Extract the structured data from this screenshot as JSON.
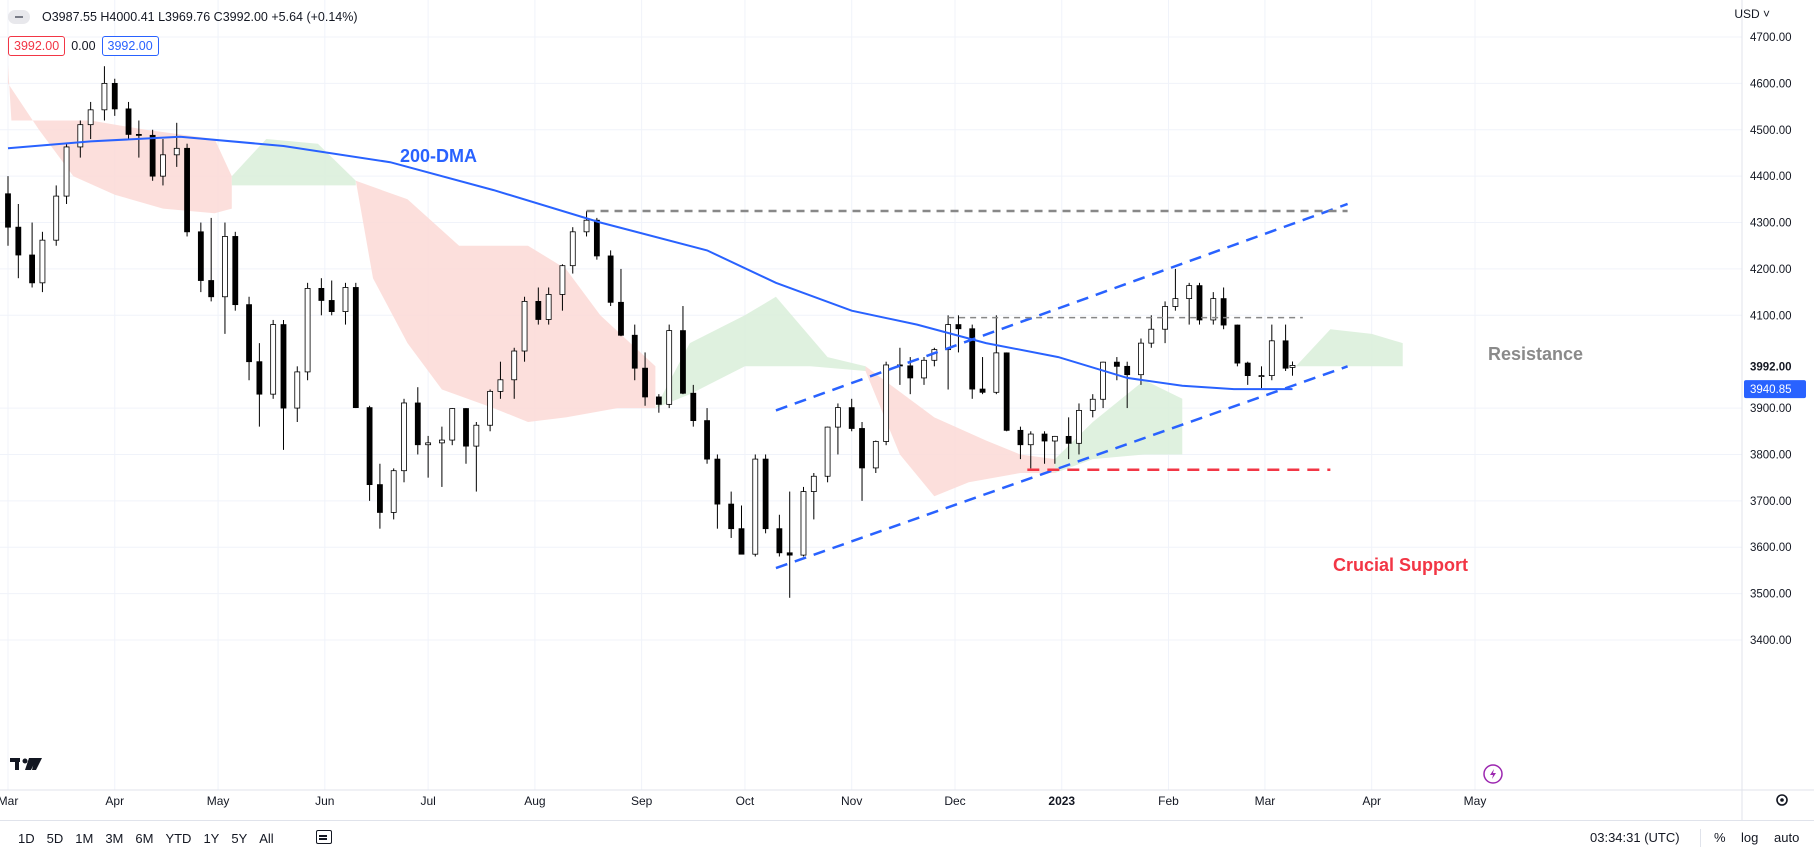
{
  "header": {
    "ohlc_text": "O3987.55 H4000.41 L3969.76 C3992.00 +5.64 (+0.14%)",
    "chip_price": "3992.00",
    "chip_spread": "0.00",
    "chip_price2": "3992.00",
    "currency": "USD ˅"
  },
  "price_axis": {
    "ticks": [
      "4700.00",
      "4600.00",
      "4500.00",
      "4400.00",
      "4300.00",
      "4200.00",
      "4100.00",
      "3900.00",
      "3800.00",
      "3700.00",
      "3600.00",
      "3500.00",
      "3400.00"
    ],
    "last_price_label": "3992.00",
    "ma_label": "3940.85"
  },
  "time_axis": {
    "labels": [
      "Mar",
      "Apr",
      "May",
      "Jun",
      "Jul",
      "Aug",
      "Sep",
      "Oct",
      "Nov",
      "Dec",
      "2023",
      "Feb",
      "Mar",
      "Apr",
      "May"
    ]
  },
  "annotations": {
    "ma_label": "200-DMA",
    "resistance": "Resistance",
    "support": "Crucial Support"
  },
  "bottom_bar": {
    "ranges": [
      "1D",
      "5D",
      "1M",
      "3M",
      "6M",
      "YTD",
      "1Y",
      "5Y",
      "All"
    ],
    "clock": "03:34:31 (UTC)",
    "pct": "%",
    "log": "log",
    "auto": "auto"
  },
  "colors": {
    "ma": "#2962ff",
    "support": "#f23645",
    "resistance": "#888888",
    "channel": "#2962ff",
    "cloud_bear": "#fbd9d6",
    "cloud_bull": "#d9efd9",
    "candle_up_fill": "#ffffff",
    "candle_down_fill": "#000000"
  },
  "chart_data": {
    "type": "candlestick",
    "symbol_last": {
      "open": 3987.55,
      "high": 4000.41,
      "low": 3969.76,
      "close": 3992.0,
      "change": 5.64,
      "change_pct": 0.14
    },
    "y_range": [
      3350,
      4750
    ],
    "x_range": [
      "2022-03-01",
      "2023-05-05"
    ],
    "grid": true,
    "candles": [
      [
        "2022-03-01",
        4362,
        4400,
        4250,
        4290
      ],
      [
        "2022-03-04",
        4290,
        4340,
        4180,
        4230
      ],
      [
        "2022-03-08",
        4230,
        4300,
        4160,
        4170
      ],
      [
        "2022-03-11",
        4170,
        4280,
        4150,
        4262
      ],
      [
        "2022-03-15",
        4262,
        4380,
        4250,
        4357
      ],
      [
        "2022-03-18",
        4357,
        4470,
        4340,
        4463
      ],
      [
        "2022-03-22",
        4463,
        4520,
        4440,
        4511
      ],
      [
        "2022-03-25",
        4511,
        4560,
        4480,
        4543
      ],
      [
        "2022-03-29",
        4543,
        4637,
        4520,
        4600
      ],
      [
        "2022-04-01",
        4600,
        4610,
        4530,
        4545
      ],
      [
        "2022-04-05",
        4545,
        4560,
        4480,
        4490
      ],
      [
        "2022-04-08",
        4490,
        4520,
        4440,
        4488
      ],
      [
        "2022-04-12",
        4488,
        4500,
        4390,
        4400
      ],
      [
        "2022-04-15",
        4400,
        4480,
        4380,
        4446
      ],
      [
        "2022-04-19",
        4446,
        4515,
        4420,
        4460
      ],
      [
        "2022-04-22",
        4460,
        4470,
        4270,
        4280
      ],
      [
        "2022-04-26",
        4280,
        4300,
        4150,
        4175
      ],
      [
        "2022-04-29",
        4175,
        4310,
        4130,
        4140
      ],
      [
        "2022-05-03",
        4140,
        4300,
        4060,
        4270
      ],
      [
        "2022-05-06",
        4270,
        4280,
        4110,
        4123
      ],
      [
        "2022-05-10",
        4123,
        4140,
        3960,
        4000
      ],
      [
        "2022-05-13",
        4000,
        4040,
        3860,
        3930
      ],
      [
        "2022-05-17",
        3930,
        4090,
        3920,
        4080
      ],
      [
        "2022-05-20",
        4080,
        4090,
        3810,
        3900
      ],
      [
        "2022-05-24",
        3900,
        3990,
        3870,
        3978
      ],
      [
        "2022-05-27",
        3978,
        4170,
        3960,
        4158
      ],
      [
        "2022-05-31",
        4158,
        4180,
        4100,
        4132
      ],
      [
        "2022-06-03",
        4132,
        4175,
        4100,
        4108
      ],
      [
        "2022-06-07",
        4108,
        4170,
        4080,
        4160
      ],
      [
        "2022-06-10",
        4160,
        4170,
        3900,
        3901
      ],
      [
        "2022-06-14",
        3901,
        3905,
        3700,
        3735
      ],
      [
        "2022-06-17",
        3735,
        3780,
        3640,
        3675
      ],
      [
        "2022-06-21",
        3675,
        3770,
        3660,
        3765
      ],
      [
        "2022-06-24",
        3765,
        3920,
        3740,
        3911
      ],
      [
        "2022-06-28",
        3911,
        3945,
        3800,
        3821
      ],
      [
        "2022-07-01",
        3821,
        3840,
        3750,
        3825
      ],
      [
        "2022-07-05",
        3825,
        3860,
        3730,
        3831
      ],
      [
        "2022-07-08",
        3831,
        3900,
        3820,
        3899
      ],
      [
        "2022-07-12",
        3899,
        3900,
        3780,
        3818
      ],
      [
        "2022-07-15",
        3818,
        3870,
        3720,
        3863
      ],
      [
        "2022-07-19",
        3863,
        3940,
        3850,
        3936
      ],
      [
        "2022-07-22",
        3936,
        4000,
        3920,
        3961
      ],
      [
        "2022-07-26",
        3961,
        4030,
        3920,
        4023
      ],
      [
        "2022-07-29",
        4023,
        4140,
        4000,
        4130
      ],
      [
        "2022-08-02",
        4130,
        4160,
        4080,
        4091
      ],
      [
        "2022-08-05",
        4091,
        4160,
        4080,
        4145
      ],
      [
        "2022-08-09",
        4145,
        4210,
        4110,
        4207
      ],
      [
        "2022-08-12",
        4207,
        4290,
        4190,
        4280
      ],
      [
        "2022-08-16",
        4280,
        4325,
        4270,
        4305
      ],
      [
        "2022-08-19",
        4305,
        4310,
        4220,
        4228
      ],
      [
        "2022-08-23",
        4228,
        4240,
        4120,
        4128
      ],
      [
        "2022-08-26",
        4128,
        4200,
        4055,
        4057
      ],
      [
        "2022-08-30",
        4057,
        4080,
        3960,
        3986
      ],
      [
        "2022-09-02",
        3986,
        4020,
        3905,
        3924
      ],
      [
        "2022-09-06",
        3924,
        3930,
        3890,
        3908
      ],
      [
        "2022-09-09",
        3908,
        4080,
        3900,
        4067
      ],
      [
        "2022-09-13",
        4067,
        4120,
        3930,
        3932
      ],
      [
        "2022-09-16",
        3932,
        3950,
        3860,
        3873
      ],
      [
        "2022-09-20",
        3873,
        3900,
        3780,
        3790
      ],
      [
        "2022-09-23",
        3790,
        3800,
        3640,
        3693
      ],
      [
        "2022-09-27",
        3693,
        3720,
        3620,
        3640
      ],
      [
        "2022-09-30",
        3640,
        3690,
        3585,
        3585
      ],
      [
        "2022-10-04",
        3585,
        3800,
        3580,
        3790
      ],
      [
        "2022-10-07",
        3790,
        3800,
        3630,
        3640
      ],
      [
        "2022-10-11",
        3640,
        3670,
        3580,
        3588
      ],
      [
        "2022-10-14",
        3588,
        3720,
        3491,
        3583
      ],
      [
        "2022-10-18",
        3583,
        3730,
        3580,
        3720
      ],
      [
        "2022-10-21",
        3720,
        3760,
        3660,
        3753
      ],
      [
        "2022-10-25",
        3753,
        3860,
        3740,
        3859
      ],
      [
        "2022-10-28",
        3859,
        3910,
        3800,
        3901
      ],
      [
        "2022-11-01",
        3901,
        3920,
        3850,
        3856
      ],
      [
        "2022-11-04",
        3856,
        3870,
        3700,
        3771
      ],
      [
        "2022-11-08",
        3771,
        3830,
        3760,
        3828
      ],
      [
        "2022-11-11",
        3828,
        4000,
        3820,
        3993
      ],
      [
        "2022-11-15",
        3993,
        4030,
        3950,
        3991
      ],
      [
        "2022-11-18",
        3991,
        4010,
        3930,
        3965
      ],
      [
        "2022-11-22",
        3965,
        4010,
        3950,
        4003
      ],
      [
        "2022-11-25",
        4003,
        4030,
        3990,
        4026
      ],
      [
        "2022-11-29",
        4026,
        4100,
        3940,
        4080
      ],
      [
        "2022-12-02",
        4080,
        4100,
        4020,
        4071
      ],
      [
        "2022-12-06",
        4071,
        4080,
        3920,
        3941
      ],
      [
        "2022-12-09",
        3941,
        4010,
        3930,
        3934
      ],
      [
        "2022-12-13",
        3934,
        4100,
        3930,
        4019
      ],
      [
        "2022-12-16",
        4019,
        4020,
        3850,
        3852
      ],
      [
        "2022-12-20",
        3852,
        3860,
        3790,
        3821
      ],
      [
        "2022-12-23",
        3821,
        3850,
        3770,
        3844
      ],
      [
        "2022-12-27",
        3844,
        3850,
        3780,
        3829
      ],
      [
        "2022-12-30",
        3829,
        3840,
        3780,
        3839
      ],
      [
        "2023-01-03",
        3839,
        3880,
        3790,
        3824
      ],
      [
        "2023-01-06",
        3824,
        3910,
        3800,
        3895
      ],
      [
        "2023-01-10",
        3895,
        3930,
        3880,
        3919
      ],
      [
        "2023-01-13",
        3919,
        4000,
        3900,
        3999
      ],
      [
        "2023-01-17",
        3999,
        4010,
        3960,
        3990
      ],
      [
        "2023-01-20",
        3990,
        4000,
        3900,
        3972
      ],
      [
        "2023-01-24",
        3972,
        4050,
        3950,
        4040
      ],
      [
        "2023-01-27",
        4040,
        4100,
        4030,
        4070
      ],
      [
        "2023-01-31",
        4070,
        4130,
        4040,
        4119
      ],
      [
        "2023-02-03",
        4119,
        4200,
        4110,
        4136
      ],
      [
        "2023-02-07",
        4136,
        4170,
        4080,
        4164
      ],
      [
        "2023-02-10",
        4164,
        4170,
        4080,
        4090
      ],
      [
        "2023-02-14",
        4090,
        4150,
        4080,
        4136
      ],
      [
        "2023-02-17",
        4136,
        4160,
        4070,
        4079
      ],
      [
        "2023-02-21",
        4079,
        4080,
        3990,
        3997
      ],
      [
        "2023-02-24",
        3997,
        4000,
        3950,
        3970
      ],
      [
        "2023-02-28",
        3970,
        3990,
        3943,
        3970
      ],
      [
        "2023-03-03",
        3970,
        4080,
        3960,
        4045
      ],
      [
        "2023-03-07",
        4045,
        4080,
        3980,
        3986
      ],
      [
        "2023-03-09",
        3987.55,
        4000.41,
        3969.76,
        3992
      ]
    ],
    "ma200": [
      [
        "2022-03-01",
        4460
      ],
      [
        "2022-03-25",
        4475
      ],
      [
        "2022-04-20",
        4485
      ],
      [
        "2022-05-20",
        4465
      ],
      [
        "2022-06-20",
        4430
      ],
      [
        "2022-07-20",
        4370
      ],
      [
        "2022-08-20",
        4300
      ],
      [
        "2022-09-20",
        4240
      ],
      [
        "2022-10-10",
        4170
      ],
      [
        "2022-11-01",
        4110
      ],
      [
        "2022-11-20",
        4080
      ],
      [
        "2022-12-10",
        4040
      ],
      [
        "2022-12-31",
        4010
      ],
      [
        "2023-01-20",
        3965
      ],
      [
        "2023-02-05",
        3948
      ],
      [
        "2023-02-20",
        3941
      ],
      [
        "2023-03-09",
        3940.85
      ]
    ],
    "cloud": [
      {
        "color": "bear",
        "points": [
          [
            "2022-03-01",
            4640
          ],
          [
            "2022-03-02",
            4520
          ],
          [
            "2022-03-25",
            4520
          ],
          [
            "2022-04-10",
            4500
          ],
          [
            "2022-04-30",
            4480
          ],
          [
            "2022-05-05",
            4400
          ],
          [
            "2022-05-05",
            4330
          ],
          [
            "2022-04-30",
            4320
          ],
          [
            "2022-04-15",
            4330
          ],
          [
            "2022-04-01",
            4360
          ],
          [
            "2022-03-20",
            4400
          ],
          [
            "2022-03-10",
            4500
          ],
          [
            "2022-03-01",
            4600
          ]
        ]
      },
      {
        "color": "bull",
        "points": [
          [
            "2022-05-05",
            4400
          ],
          [
            "2022-05-15",
            4480
          ],
          [
            "2022-05-30",
            4470
          ],
          [
            "2022-06-10",
            4390
          ],
          [
            "2022-06-10",
            4380
          ],
          [
            "2022-05-15",
            4380
          ],
          [
            "2022-05-05",
            4380
          ]
        ]
      },
      {
        "color": "bear",
        "points": [
          [
            "2022-06-10",
            4390
          ],
          [
            "2022-06-25",
            4350
          ],
          [
            "2022-07-10",
            4250
          ],
          [
            "2022-07-30",
            4250
          ],
          [
            "2022-08-10",
            4200
          ],
          [
            "2022-08-20",
            4100
          ],
          [
            "2022-09-05",
            3990
          ],
          [
            "2022-09-05",
            3900
          ],
          [
            "2022-08-25",
            3900
          ],
          [
            "2022-08-10",
            3880
          ],
          [
            "2022-07-30",
            3870
          ],
          [
            "2022-07-20",
            3900
          ],
          [
            "2022-07-05",
            3940
          ],
          [
            "2022-06-25",
            4040
          ],
          [
            "2022-06-15",
            4180
          ],
          [
            "2022-06-10",
            4390
          ]
        ]
      },
      {
        "color": "bull",
        "points": [
          [
            "2022-09-05",
            3900
          ],
          [
            "2022-09-15",
            4040
          ],
          [
            "2022-10-01",
            4100
          ],
          [
            "2022-10-10",
            4140
          ],
          [
            "2022-10-25",
            4010
          ],
          [
            "2022-11-05",
            3990
          ],
          [
            "2022-11-05",
            3980
          ],
          [
            "2022-10-20",
            3990
          ],
          [
            "2022-10-01",
            3990
          ],
          [
            "2022-09-15",
            3930
          ],
          [
            "2022-09-05",
            3900
          ]
        ]
      },
      {
        "color": "bear",
        "points": [
          [
            "2022-11-05",
            3990
          ],
          [
            "2022-11-25",
            3880
          ],
          [
            "2022-12-10",
            3830
          ],
          [
            "2022-12-20",
            3800
          ],
          [
            "2022-12-30",
            3790
          ],
          [
            "2022-12-30",
            3760
          ],
          [
            "2022-12-20",
            3760
          ],
          [
            "2022-12-05",
            3740
          ],
          [
            "2022-11-25",
            3710
          ],
          [
            "2022-11-15",
            3800
          ],
          [
            "2022-11-05",
            3980
          ]
        ]
      },
      {
        "color": "bull",
        "points": [
          [
            "2022-12-30",
            3790
          ],
          [
            "2023-01-10",
            3870
          ],
          [
            "2023-01-25",
            3960
          ],
          [
            "2023-02-05",
            3920
          ],
          [
            "2023-02-05",
            3800
          ],
          [
            "2023-01-25",
            3800
          ],
          [
            "2023-01-10",
            3790
          ],
          [
            "2022-12-30",
            3760
          ]
        ]
      },
      {
        "color": "bull",
        "points": [
          [
            "2023-03-10",
            3990
          ],
          [
            "2023-03-20",
            4070
          ],
          [
            "2023-04-01",
            4060
          ],
          [
            "2023-04-10",
            4040
          ],
          [
            "2023-04-10",
            3990
          ],
          [
            "2023-03-10",
            3990
          ]
        ]
      }
    ],
    "lines": [
      {
        "name": "channel-upper",
        "style": "dash",
        "color": "channel",
        "points": [
          [
            "2022-10-10",
            3895
          ],
          [
            "2023-03-25",
            4340
          ]
        ]
      },
      {
        "name": "channel-lower",
        "style": "dash",
        "color": "channel",
        "points": [
          [
            "2022-10-10",
            3555
          ],
          [
            "2023-03-25",
            3990
          ]
        ]
      },
      {
        "name": "top-resistance",
        "style": "dash",
        "color": "resistance",
        "points": [
          [
            "2022-08-16",
            4325
          ],
          [
            "2023-03-25",
            4325
          ]
        ]
      },
      {
        "name": "resistance",
        "style": "dash",
        "color": "resistance",
        "points": [
          [
            "2022-11-29",
            4095
          ],
          [
            "2023-03-12",
            4095
          ]
        ]
      },
      {
        "name": "crucial-support",
        "style": "dash",
        "color": "support",
        "points": [
          [
            "2022-12-22",
            3767
          ],
          [
            "2023-03-20",
            3767
          ]
        ]
      }
    ]
  }
}
